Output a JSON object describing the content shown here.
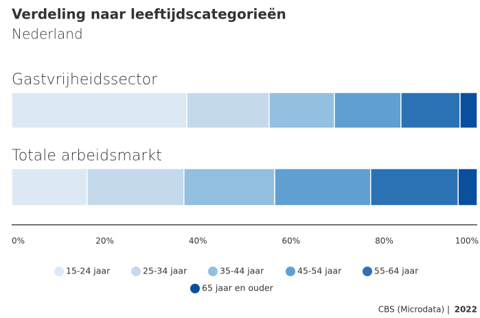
{
  "chart_data": {
    "type": "stacked_bar_horizontal",
    "title": "Verdeling naar leeftijdscategorieën",
    "subtitle": "Nederland",
    "categories": [
      "Gastvrijheidssector",
      "Totale arbeidsmarkt"
    ],
    "series": [
      {
        "name": "15-24 jaar",
        "color": "#dce9f5",
        "values": [
          37.6,
          16.2
        ]
      },
      {
        "name": "25-34 jaar",
        "color": "#c4d9ec",
        "values": [
          17.7,
          20.8
        ]
      },
      {
        "name": "35-44 jaar",
        "color": "#93bfe0",
        "values": [
          14.0,
          19.5
        ]
      },
      {
        "name": "45-54 jaar",
        "color": "#5f9fd1",
        "values": [
          14.3,
          20.6
        ]
      },
      {
        "name": "55-64 jaar",
        "color": "#2b72b5",
        "values": [
          12.7,
          18.8
        ]
      },
      {
        "name": "65 jaar en ouder",
        "color": "#0a4f9e",
        "values": [
          3.7,
          4.1
        ]
      }
    ],
    "xlim": [
      0,
      100
    ],
    "xticks": [
      {
        "value": 0,
        "label": "0%"
      },
      {
        "value": 20,
        "label": "20%"
      },
      {
        "value": 40,
        "label": "40%"
      },
      {
        "value": 60,
        "label": "60%"
      },
      {
        "value": 80,
        "label": "80%"
      },
      {
        "value": 100,
        "label": "100%"
      }
    ],
    "legend": "bottom",
    "source": "CBS (Microdata) |",
    "source_year": "2022"
  }
}
